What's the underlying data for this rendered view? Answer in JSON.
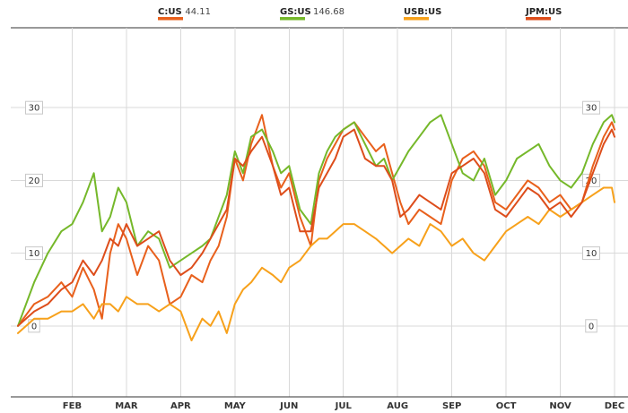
{
  "chart_data": {
    "type": "line",
    "title": "",
    "xlabel": "",
    "ylabel": "",
    "x_ticks": [
      "FEB",
      "MAR",
      "APR",
      "MAY",
      "JUN",
      "JUL",
      "AUG",
      "SEP",
      "OCT",
      "NOV",
      "DEC"
    ],
    "x_tick_positions": [
      1.0,
      2.0,
      3.0,
      4.0,
      5.0,
      6.0,
      7.0,
      8.0,
      9.0,
      10.0,
      11.0
    ],
    "xlim": [
      0.0,
      11.0
    ],
    "ylim": [
      -10,
      40
    ],
    "y_ticks": [
      0,
      10,
      20,
      30
    ],
    "grid": true,
    "legend_position": "top",
    "series": [
      {
        "name": "C:US",
        "legend_value": "44.11",
        "color": "#e8601c",
        "x": [
          0.0,
          0.3,
          0.55,
          0.8,
          1.0,
          1.2,
          1.4,
          1.55,
          1.7,
          1.85,
          2.0,
          2.2,
          2.4,
          2.6,
          2.8,
          3.0,
          3.2,
          3.4,
          3.55,
          3.7,
          3.85,
          4.0,
          4.15,
          4.3,
          4.5,
          4.7,
          4.85,
          5.0,
          5.2,
          5.4,
          5.55,
          5.7,
          5.85,
          6.0,
          6.2,
          6.4,
          6.6,
          6.75,
          6.9,
          7.05,
          7.2,
          7.4,
          7.6,
          7.8,
          8.0,
          8.2,
          8.4,
          8.6,
          8.8,
          9.0,
          9.2,
          9.4,
          9.6,
          9.8,
          10.0,
          10.2,
          10.4,
          10.6,
          10.8,
          10.95,
          11.0
        ],
        "y": [
          0,
          3,
          4,
          6,
          4,
          8,
          5,
          1,
          10,
          14,
          12,
          7,
          11,
          9,
          3,
          4,
          7,
          6,
          9,
          11,
          15,
          23,
          20,
          25,
          29,
          22,
          19,
          21,
          15,
          11,
          20,
          23,
          25,
          27,
          28,
          26,
          24,
          25,
          21,
          17,
          14,
          16,
          15,
          14,
          20,
          23,
          24,
          22,
          17,
          16,
          18,
          20,
          19,
          17,
          18,
          16,
          17,
          22,
          26,
          28,
          27
        ]
      },
      {
        "name": "GS:US",
        "legend_value": "146.68",
        "color": "#75b82a",
        "x": [
          0.0,
          0.3,
          0.55,
          0.8,
          1.0,
          1.2,
          1.4,
          1.55,
          1.7,
          1.85,
          2.0,
          2.2,
          2.4,
          2.6,
          2.8,
          3.0,
          3.2,
          3.4,
          3.55,
          3.7,
          3.85,
          4.0,
          4.15,
          4.3,
          4.5,
          4.7,
          4.85,
          5.0,
          5.2,
          5.4,
          5.55,
          5.7,
          5.85,
          6.0,
          6.2,
          6.4,
          6.6,
          6.75,
          6.9,
          7.05,
          7.2,
          7.4,
          7.6,
          7.8,
          8.0,
          8.2,
          8.4,
          8.6,
          8.8,
          9.0,
          9.2,
          9.4,
          9.6,
          9.8,
          10.0,
          10.2,
          10.4,
          10.6,
          10.8,
          10.95,
          11.0
        ],
        "y": [
          0,
          6,
          10,
          13,
          14,
          17,
          21,
          13,
          15,
          19,
          17,
          11,
          13,
          12,
          8,
          9,
          10,
          11,
          12,
          15,
          18,
          24,
          21,
          26,
          27,
          24,
          21,
          22,
          16,
          14,
          21,
          24,
          26,
          27,
          28,
          25,
          22,
          23,
          20,
          22,
          24,
          26,
          28,
          29,
          25,
          21,
          20,
          23,
          18,
          20,
          23,
          24,
          25,
          22,
          20,
          19,
          21,
          25,
          28,
          29,
          28
        ]
      },
      {
        "name": "USB:US",
        "legend_value": "",
        "color": "#f7a11b",
        "x": [
          0.0,
          0.3,
          0.55,
          0.8,
          1.0,
          1.2,
          1.4,
          1.55,
          1.7,
          1.85,
          2.0,
          2.2,
          2.4,
          2.6,
          2.8,
          3.0,
          3.2,
          3.4,
          3.55,
          3.7,
          3.85,
          4.0,
          4.15,
          4.3,
          4.5,
          4.7,
          4.85,
          5.0,
          5.2,
          5.4,
          5.55,
          5.7,
          5.85,
          6.0,
          6.2,
          6.4,
          6.6,
          6.75,
          6.9,
          7.05,
          7.2,
          7.4,
          7.6,
          7.8,
          8.0,
          8.2,
          8.4,
          8.6,
          8.8,
          9.0,
          9.2,
          9.4,
          9.6,
          9.8,
          10.0,
          10.2,
          10.4,
          10.6,
          10.8,
          10.95,
          11.0
        ],
        "y": [
          -1,
          1,
          1,
          2,
          2,
          3,
          1,
          3,
          3,
          2,
          4,
          3,
          3,
          2,
          3,
          2,
          -2,
          1,
          0,
          2,
          -1,
          3,
          5,
          6,
          8,
          7,
          6,
          8,
          9,
          11,
          12,
          12,
          13,
          14,
          14,
          13,
          12,
          11,
          10,
          11,
          12,
          11,
          14,
          13,
          11,
          12,
          10,
          9,
          11,
          13,
          14,
          15,
          14,
          16,
          15,
          16,
          17,
          18,
          19,
          19,
          17
        ]
      },
      {
        "name": "JPM:US",
        "legend_value": "",
        "color": "#dd4d1b",
        "x": [
          0.0,
          0.3,
          0.55,
          0.8,
          1.0,
          1.2,
          1.4,
          1.55,
          1.7,
          1.85,
          2.0,
          2.2,
          2.4,
          2.6,
          2.8,
          3.0,
          3.2,
          3.4,
          3.55,
          3.7,
          3.85,
          4.0,
          4.15,
          4.3,
          4.5,
          4.7,
          4.85,
          5.0,
          5.2,
          5.4,
          5.55,
          5.7,
          5.85,
          6.0,
          6.2,
          6.4,
          6.6,
          6.75,
          6.9,
          7.05,
          7.2,
          7.4,
          7.6,
          7.8,
          8.0,
          8.2,
          8.4,
          8.6,
          8.8,
          9.0,
          9.2,
          9.4,
          9.6,
          9.8,
          10.0,
          10.2,
          10.4,
          10.6,
          10.8,
          10.95,
          11.0
        ],
        "y": [
          0,
          2,
          3,
          5,
          6,
          9,
          7,
          9,
          12,
          11,
          14,
          11,
          12,
          13,
          9,
          7,
          8,
          10,
          12,
          14,
          16,
          23,
          22,
          24,
          26,
          22,
          18,
          19,
          13,
          13,
          19,
          21,
          23,
          26,
          27,
          23,
          22,
          22,
          20,
          15,
          16,
          18,
          17,
          16,
          21,
          22,
          23,
          21,
          16,
          15,
          17,
          19,
          18,
          16,
          17,
          15,
          17,
          21,
          25,
          27,
          26
        ]
      }
    ]
  }
}
